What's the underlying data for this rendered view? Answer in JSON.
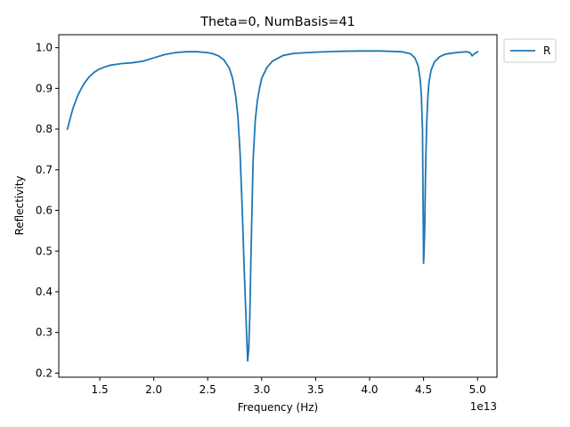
{
  "chart_data": {
    "type": "line",
    "title": "Theta=0, NumBasis=41",
    "xlabel": "Frequency (Hz)",
    "ylabel": "Reflectivity",
    "x_offset_label": "1e13",
    "xlim": [
      1.12,
      5.18
    ],
    "ylim": [
      0.19,
      1.032
    ],
    "xticks": [
      1.5,
      2.0,
      2.5,
      3.0,
      3.5,
      4.0,
      4.5,
      5.0
    ],
    "xtick_labels": [
      "1.5",
      "2.0",
      "2.5",
      "3.0",
      "3.5",
      "4.0",
      "4.5",
      "5.0"
    ],
    "yticks": [
      0.2,
      0.3,
      0.4,
      0.5,
      0.6,
      0.7,
      0.8,
      0.9,
      1.0
    ],
    "ytick_labels": [
      "0.2",
      "0.3",
      "0.4",
      "0.5",
      "0.6",
      "0.7",
      "0.8",
      "0.9",
      "1.0"
    ],
    "grid": false,
    "legend_position": "outside-top-right",
    "series": [
      {
        "name": "R",
        "color": "#1f77b4",
        "x": [
          1.2,
          1.25,
          1.3,
          1.35,
          1.4,
          1.45,
          1.5,
          1.55,
          1.6,
          1.7,
          1.8,
          1.9,
          2.0,
          2.1,
          2.2,
          2.3,
          2.4,
          2.5,
          2.55,
          2.6,
          2.65,
          2.7,
          2.73,
          2.76,
          2.78,
          2.8,
          2.82,
          2.84,
          2.86,
          2.87,
          2.88,
          2.89,
          2.9,
          2.92,
          2.94,
          2.96,
          2.98,
          3.0,
          3.05,
          3.1,
          3.2,
          3.3,
          3.5,
          3.7,
          3.9,
          4.1,
          4.3,
          4.38,
          4.42,
          4.45,
          4.47,
          4.48,
          4.49,
          4.5,
          4.505,
          4.51,
          4.52,
          4.53,
          4.54,
          4.55,
          4.57,
          4.6,
          4.65,
          4.7,
          4.8,
          4.9,
          4.93,
          4.95,
          4.97,
          5.0
        ],
        "y": [
          0.8,
          0.85,
          0.885,
          0.91,
          0.928,
          0.94,
          0.948,
          0.953,
          0.957,
          0.961,
          0.963,
          0.967,
          0.975,
          0.983,
          0.988,
          0.99,
          0.99,
          0.988,
          0.985,
          0.98,
          0.97,
          0.95,
          0.925,
          0.88,
          0.83,
          0.74,
          0.6,
          0.44,
          0.3,
          0.23,
          0.26,
          0.34,
          0.48,
          0.72,
          0.82,
          0.87,
          0.9,
          0.925,
          0.952,
          0.967,
          0.981,
          0.986,
          0.989,
          0.991,
          0.992,
          0.992,
          0.99,
          0.985,
          0.975,
          0.955,
          0.92,
          0.88,
          0.8,
          0.47,
          0.5,
          0.55,
          0.72,
          0.82,
          0.88,
          0.915,
          0.945,
          0.965,
          0.978,
          0.984,
          0.988,
          0.99,
          0.988,
          0.98,
          0.985,
          0.99
        ]
      }
    ]
  }
}
